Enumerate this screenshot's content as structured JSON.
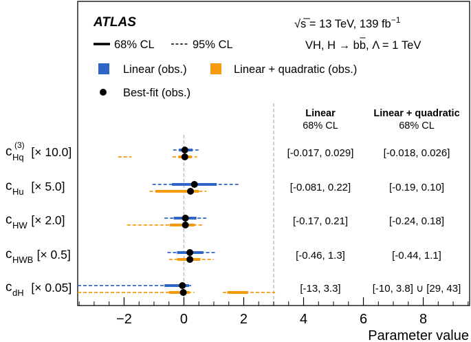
{
  "chart_data": {
    "type": "scatter",
    "subtype": "interval-plot",
    "xlabel": "Parameter value",
    "ylabel": "",
    "xlim": [
      -3.55,
      9.55
    ],
    "xticks": [
      -2,
      0,
      2,
      4,
      6,
      8
    ],
    "xtick_labels": [
      "−2",
      "0",
      "2",
      "4",
      "6",
      "8"
    ],
    "reference_line_x": 0,
    "separator_line_x": 3.0,
    "header": {
      "experiment": "ATLAS",
      "energy_sqrt": "√s",
      "energy_rest": " = 13 TeV, 139 fb",
      "energy_sup": "−1",
      "process": "VH, H → b",
      "process_bbar": "b",
      "process_rest": ", Λ = 1 TeV"
    },
    "legend": {
      "cl68": "68% CL",
      "cl95": "95% CL",
      "linear": "Linear (obs.)",
      "quadratic": "Linear + quadratic (obs.)",
      "bestfit": "Best-fit (obs.)"
    },
    "columns": {
      "linear_title": "Linear",
      "linear_sub": "68% CL",
      "quad_title": "Linear + quadratic",
      "quad_sub": "68% CL"
    },
    "colors": {
      "linear": "#3065c8",
      "quadratic": "#f59a0b",
      "grid": "#bbbbbb"
    },
    "series": [
      {
        "name": "Linear (obs.)",
        "key": "linear"
      },
      {
        "name": "Linear + quadratic (obs.)",
        "key": "quadratic"
      }
    ],
    "parameters": [
      {
        "name": "c",
        "sub": "Hq",
        "sup": "(3)",
        "scale": "[× 10.0]",
        "linear": {
          "best": 0.03,
          "cl68": [
            [
              -0.17,
              0.29
            ]
          ],
          "cl95": [
            [
              -0.36,
              0.56
            ]
          ],
          "text": "[-0.017, 0.029]"
        },
        "quadratic": {
          "best": 0.03,
          "cl68": [
            [
              -0.18,
              0.26
            ]
          ],
          "cl95": [
            [
              -2.2,
              -1.75
            ],
            [
              -0.38,
              0.44
            ]
          ],
          "text": "[-0.018, 0.026]"
        }
      },
      {
        "name": "c",
        "sub": "Hu",
        "sup": "",
        "scale": "[× 5.0]",
        "linear": {
          "best": 0.35,
          "cl68": [
            [
              -0.4,
              1.1
            ]
          ],
          "cl95": [
            [
              -1.05,
              1.85
            ]
          ],
          "text": "[-0.081, 0.22]"
        },
        "quadratic": {
          "best": 0.22,
          "cl68": [
            [
              -0.95,
              0.5
            ]
          ],
          "cl95": [
            [
              -1.15,
              0.75
            ]
          ],
          "text": "[-0.19, 0.10]"
        }
      },
      {
        "name": "c",
        "sub": "HW",
        "sup": "",
        "scale": "[× 2.0]",
        "linear": {
          "best": 0.05,
          "cl68": [
            [
              -0.34,
              0.42
            ]
          ],
          "cl95": [
            [
              -0.65,
              0.78
            ]
          ],
          "text": "[-0.17, 0.21]"
        },
        "quadratic": {
          "best": 0.05,
          "cl68": [
            [
              -0.48,
              0.36
            ]
          ],
          "cl95": [
            [
              -1.9,
              0.62
            ]
          ],
          "text": "[-0.24, 0.18]"
        }
      },
      {
        "name": "c",
        "sub": "HWB",
        "sup": "",
        "scale": "[× 0.5]",
        "linear": {
          "best": 0.2,
          "cl68": [
            [
              -0.23,
              0.65
            ]
          ],
          "cl95": [
            [
              -0.55,
              1.1
            ]
          ],
          "text": "[-0.46, 1.3]"
        },
        "quadratic": {
          "best": 0.2,
          "cl68": [
            [
              -0.22,
              0.55
            ]
          ],
          "cl95": [
            [
              -0.5,
              1.0
            ]
          ],
          "text": "[-0.44, 1.1]"
        }
      },
      {
        "name": "c",
        "sub": "dH",
        "sup": "",
        "scale": "[× 0.05]",
        "linear": {
          "best": -0.05,
          "cl68": [
            [
              -0.65,
              0.17
            ]
          ],
          "cl95": [
            [
              -3.55,
              0.3
            ]
          ],
          "text": "[-13, 3.3]"
        },
        "quadratic": {
          "best": -0.02,
          "cl68": [
            [
              -0.5,
              0.19
            ],
            [
              1.45,
              2.15
            ]
          ],
          "cl95": [
            [
              -3.55,
              0.35
            ],
            [
              1.3,
              3.05
            ]
          ],
          "text": "[-10, 3.8] ∪ [29, 43]"
        }
      }
    ]
  }
}
